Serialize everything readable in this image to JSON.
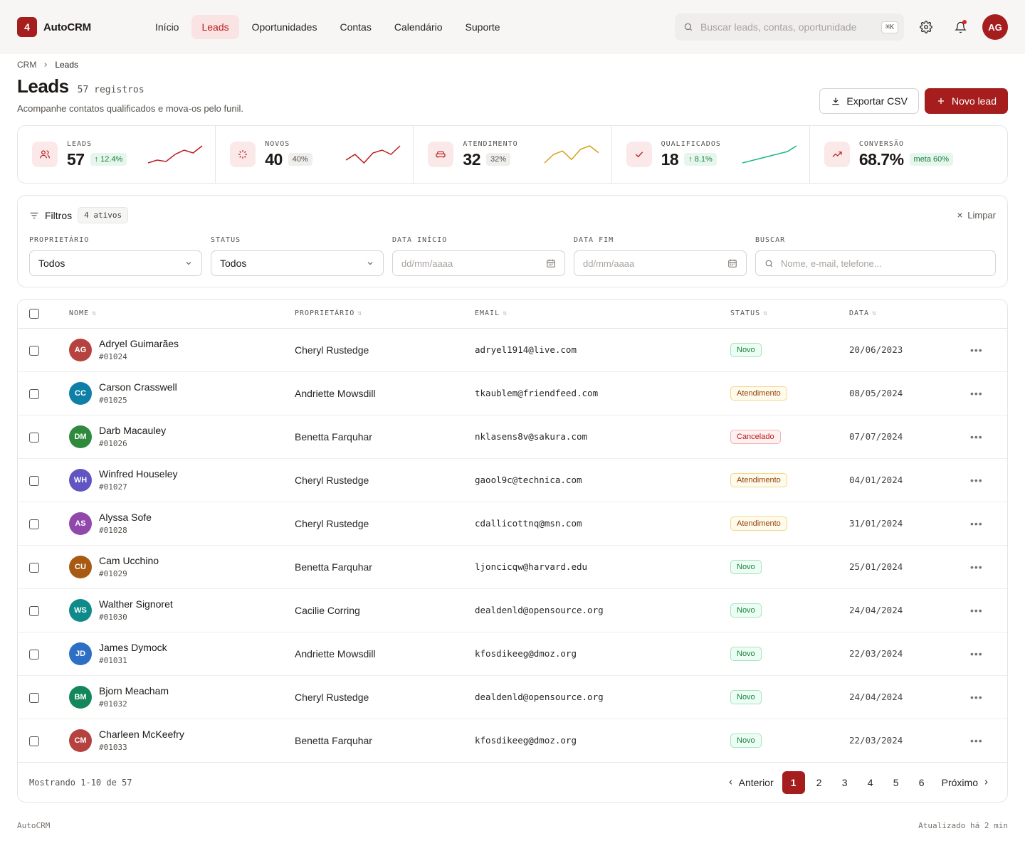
{
  "brand": {
    "badge": "4",
    "name": "AutoCRM"
  },
  "nav": [
    {
      "label": "Início",
      "active": false
    },
    {
      "label": "Leads",
      "active": true
    },
    {
      "label": "Oportunidades",
      "active": false
    },
    {
      "label": "Contas",
      "active": false
    },
    {
      "label": "Calendário",
      "active": false
    },
    {
      "label": "Suporte",
      "active": false
    }
  ],
  "search": {
    "placeholder": "Buscar leads, contas, oportunidade",
    "shortcut": "⌘K"
  },
  "user": {
    "initials": "AG"
  },
  "breadcrumb": {
    "root": "CRM",
    "current": "Leads"
  },
  "page": {
    "title": "Leads",
    "count": "57 registros",
    "subtitle": "Acompanhe contatos qualificados e mova-os pelo funil.",
    "export_label": "Exportar CSV",
    "new_label": "Novo lead"
  },
  "kpis": [
    {
      "label": "LEADS",
      "value": "57",
      "delta": "↑ 12.4%",
      "delta_style": "green",
      "icon": "users-icon",
      "spark_color": "#b91c1c",
      "spark": [
        8,
        10,
        9,
        14,
        17,
        15,
        20
      ]
    },
    {
      "label": "NOVOS",
      "value": "40",
      "delta": "40%",
      "delta_style": "gray",
      "icon": "sparkle-icon",
      "spark_color": "#b91c1c",
      "spark": [
        10,
        14,
        8,
        15,
        17,
        14,
        20
      ]
    },
    {
      "label": "ATENDIMENTO",
      "value": "32",
      "delta": "32%",
      "delta_style": "gray",
      "icon": "car-icon",
      "spark_color": "#d4a017",
      "spark": [
        8,
        13,
        15,
        10,
        16,
        18,
        14
      ]
    },
    {
      "label": "QUALIFICADOS",
      "value": "18",
      "delta": "↑ 8.1%",
      "delta_style": "green",
      "icon": "check-icon",
      "spark_color": "#10b981",
      "spark": [
        6,
        8,
        10,
        12,
        14,
        16,
        21
      ]
    },
    {
      "label": "CONVERSÃO",
      "value": "68.7%",
      "delta": "meta 60%",
      "delta_style": "green",
      "icon": "trending-up-icon",
      "spark_color": "",
      "spark": []
    }
  ],
  "filters": {
    "title": "Filtros",
    "active_count": "4 ativos",
    "clear_label": "Limpar",
    "owner_label": "PROPRIETÁRIO",
    "owner_value": "Todos",
    "status_label": "STATUS",
    "status_value": "Todos",
    "start_label": "DATA INÍCIO",
    "start_placeholder": "dd/mm/aaaa",
    "end_label": "DATA FIM",
    "end_placeholder": "dd/mm/aaaa",
    "search_label": "BUSCAR",
    "search_placeholder": "Nome, e-mail, telefone..."
  },
  "table": {
    "columns": {
      "name": "NOME",
      "owner": "PROPRIETÁRIO",
      "email": "EMAIL",
      "status": "STATUS",
      "date": "DATA"
    },
    "rows": [
      {
        "initials": "AG",
        "color": "#b5423e",
        "name": "Adryel Guimarães",
        "id": "#01024",
        "owner": "Cheryl Rustedge",
        "email": "adryel1914@live.com",
        "status": "Novo",
        "status_type": "novo",
        "date": "20/06/2023"
      },
      {
        "initials": "CC",
        "color": "#0e7fa6",
        "name": "Carson Crasswell",
        "id": "#01025",
        "owner": "Andriette Mowsdill",
        "email": "tkaublem@friendfeed.com",
        "status": "Atendimento",
        "status_type": "atend",
        "date": "08/05/2024"
      },
      {
        "initials": "DM",
        "color": "#2f8a3e",
        "name": "Darb Macauley",
        "id": "#01026",
        "owner": "Benetta Farquhar",
        "email": "nklasens8v@sakura.com",
        "status": "Cancelado",
        "status_type": "canc",
        "date": "07/07/2024"
      },
      {
        "initials": "WH",
        "color": "#6155c4",
        "name": "Winfred Houseley",
        "id": "#01027",
        "owner": "Cheryl Rustedge",
        "email": "gaool9c@technica.com",
        "status": "Atendimento",
        "status_type": "atend",
        "date": "04/01/2024"
      },
      {
        "initials": "AS",
        "color": "#9048ab",
        "name": "Alyssa Sofe",
        "id": "#01028",
        "owner": "Cheryl Rustedge",
        "email": "cdallicottnq@msn.com",
        "status": "Atendimento",
        "status_type": "atend",
        "date": "31/01/2024"
      },
      {
        "initials": "CU",
        "color": "#a85a12",
        "name": "Cam Ucchino",
        "id": "#01029",
        "owner": "Benetta Farquhar",
        "email": "ljoncicqw@harvard.edu",
        "status": "Novo",
        "status_type": "novo",
        "date": "25/01/2024"
      },
      {
        "initials": "WS",
        "color": "#0f8a8a",
        "name": "Walther Signoret",
        "id": "#01030",
        "owner": "Cacilie Corring",
        "email": "dealdenld@opensource.org",
        "status": "Novo",
        "status_type": "novo",
        "date": "24/04/2024"
      },
      {
        "initials": "JD",
        "color": "#2c6fc4",
        "name": "James Dymock",
        "id": "#01031",
        "owner": "Andriette Mowsdill",
        "email": "kfosdikeeg@dmoz.org",
        "status": "Novo",
        "status_type": "novo",
        "date": "22/03/2024"
      },
      {
        "initials": "BM",
        "color": "#14875a",
        "name": "Bjorn Meacham",
        "id": "#01032",
        "owner": "Cheryl Rustedge",
        "email": "dealdenld@opensource.org",
        "status": "Novo",
        "status_type": "novo",
        "date": "24/04/2024"
      },
      {
        "initials": "CM",
        "color": "#b5423e",
        "name": "Charleen McKeefry",
        "id": "#01033",
        "owner": "Benetta Farquhar",
        "email": "kfosdikeeg@dmoz.org",
        "status": "Novo",
        "status_type": "novo",
        "date": "22/03/2024"
      }
    ]
  },
  "pagination": {
    "showing": "Mostrando 1-10 de 57",
    "prev": "Anterior",
    "next": "Próximo",
    "pages": [
      "1",
      "2",
      "3",
      "4",
      "5",
      "6"
    ],
    "current": "1"
  },
  "footer": {
    "left": "AutoCRM",
    "right": "Atualizado há 2 min"
  }
}
